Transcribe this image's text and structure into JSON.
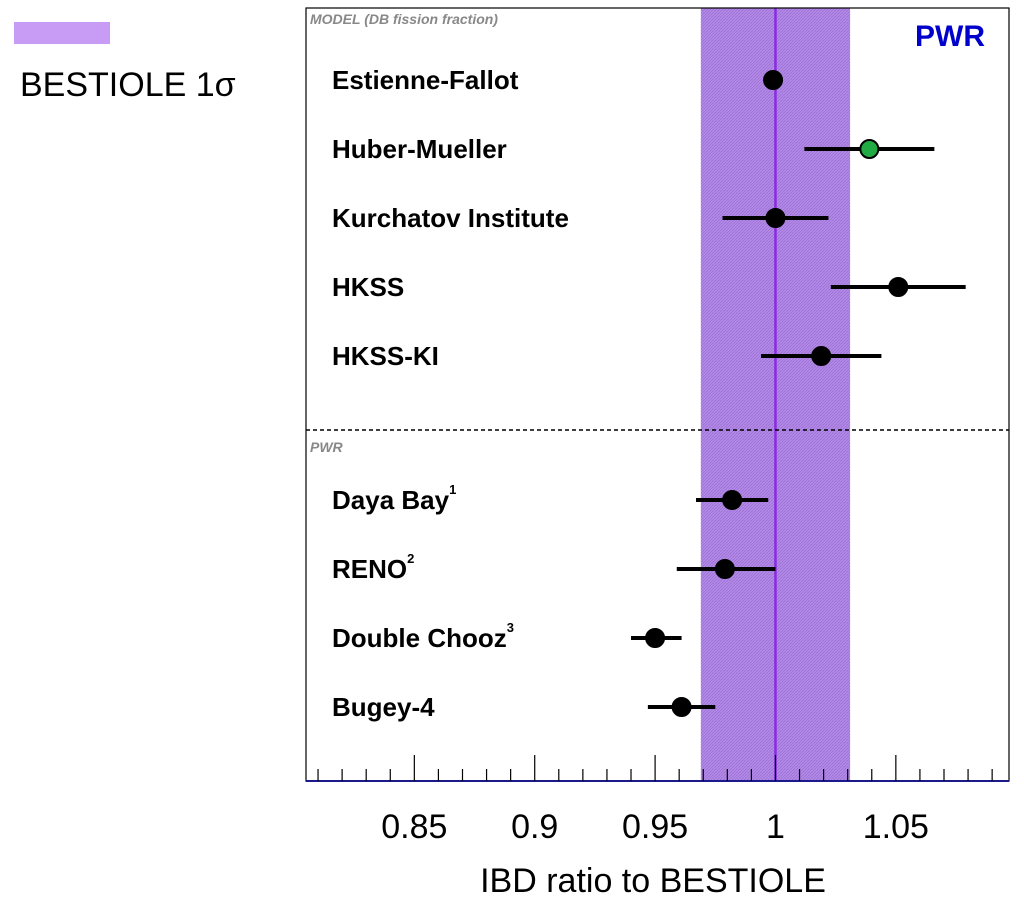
{
  "legend": {
    "label": "BESTIOLE 1σ",
    "color": "#c89cf4"
  },
  "chart_data": {
    "type": "scatter",
    "corner_label": "PWR",
    "xlabel": "IBD ratio to BESTIOLE",
    "xlim": [
      0.805,
      1.097
    ],
    "x_ticks": [
      "0.85",
      "0.9",
      "0.95",
      "1",
      "1.05"
    ],
    "band": {
      "center": 1.0,
      "low": 0.969,
      "high": 1.031,
      "color": "#b48ae6",
      "line_color": "#8a2be2"
    },
    "sections": [
      {
        "title": "MODEL (DB fission fraction)",
        "points": [
          {
            "label": "Estienne-Fallot",
            "sup": "",
            "x": 0.999,
            "xerr_low": 0.999,
            "xerr_high": 0.999,
            "color": "#000000"
          },
          {
            "label": "Huber-Mueller",
            "sup": "",
            "x": 1.039,
            "xerr_low": 1.012,
            "xerr_high": 1.066,
            "color": "#22aa44"
          },
          {
            "label": "Kurchatov Institute",
            "sup": "",
            "x": 1.0,
            "xerr_low": 0.978,
            "xerr_high": 1.022,
            "color": "#000000"
          },
          {
            "label": "HKSS",
            "sup": "",
            "x": 1.051,
            "xerr_low": 1.023,
            "xerr_high": 1.079,
            "color": "#000000"
          },
          {
            "label": "HKSS-KI",
            "sup": "",
            "x": 1.019,
            "xerr_low": 0.994,
            "xerr_high": 1.044,
            "color": "#000000"
          }
        ]
      },
      {
        "title": "PWR",
        "points": [
          {
            "label": "Daya Bay",
            "sup": "1",
            "x": 0.982,
            "xerr_low": 0.967,
            "xerr_high": 0.997,
            "color": "#000000"
          },
          {
            "label": "RENO",
            "sup": "2",
            "x": 0.979,
            "xerr_low": 0.959,
            "xerr_high": 1.0,
            "color": "#000000"
          },
          {
            "label": "Double Chooz",
            "sup": "3",
            "x": 0.95,
            "xerr_low": 0.94,
            "xerr_high": 0.961,
            "color": "#000000"
          },
          {
            "label": "Bugey-4",
            "sup": "",
            "x": 0.961,
            "xerr_low": 0.947,
            "xerr_high": 0.975,
            "color": "#000000"
          }
        ]
      }
    ]
  }
}
